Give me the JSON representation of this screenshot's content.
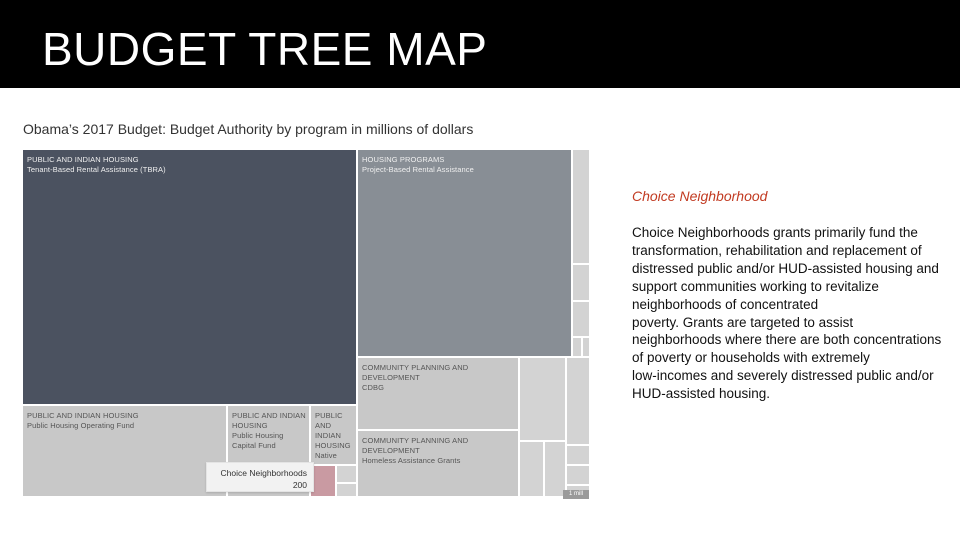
{
  "header": {
    "title": "BUDGET TREE MAP"
  },
  "chart_subtitle": "Obama’s 2017 Budget: Budget Authority by program in millions of dollars",
  "chart_data": {
    "type": "treemap",
    "title": "Obama’s 2017 Budget: Budget Authority by program in millions of dollars",
    "tiles": [
      {
        "category": "PUBLIC AND INDIAN HOUSING",
        "program": "Tenant-Based Rental Assistance (TBRA)"
      },
      {
        "category": "HOUSING PROGRAMS",
        "program": "Project-Based Rental Assistance"
      },
      {
        "category": "PUBLIC AND INDIAN HOUSING",
        "program": "Public Housing Operating Fund"
      },
      {
        "category": "PUBLIC AND INDIAN HOUSING",
        "program": "Public Housing Capital Fund"
      },
      {
        "category": "PUBLIC AND INDIAN HOUSING",
        "program": "Native"
      },
      {
        "category": "COMMUNITY PLANNING AND DEVELOPMENT",
        "program": "CDBG"
      },
      {
        "category": "COMMUNITY PLANNING AND DEVELOPMENT",
        "program": "Homeless Assistance Grants"
      },
      {
        "category": "",
        "program": "Choice Neighborhoods",
        "value": 200,
        "highlighted": true
      }
    ],
    "tooltip": {
      "label": "Choice Neighborhoods",
      "value": "200"
    },
    "legend_tag": "1 mill"
  },
  "colors": {
    "tbra": "#4b5260",
    "pbra": "#888e95",
    "light_gray": "#c8c8c8",
    "lighter_gray": "#d3d3d3",
    "highlight": "#c99aa2",
    "accent_text": "#c23b22"
  },
  "side_panel": {
    "title": "Choice Neighborhood",
    "body": "Choice Neighborhoods grants primarily fund the transformation, rehabilitation and replacement of distressed public and/or HUD-assisted housing and support communities working to revitalize neighborhoods of concentrated\npoverty. Grants are targeted to assist neighborhoods where there are both concentrations of poverty or households with extremely\nlow-incomes and severely distressed public and/or HUD-assisted housing."
  }
}
